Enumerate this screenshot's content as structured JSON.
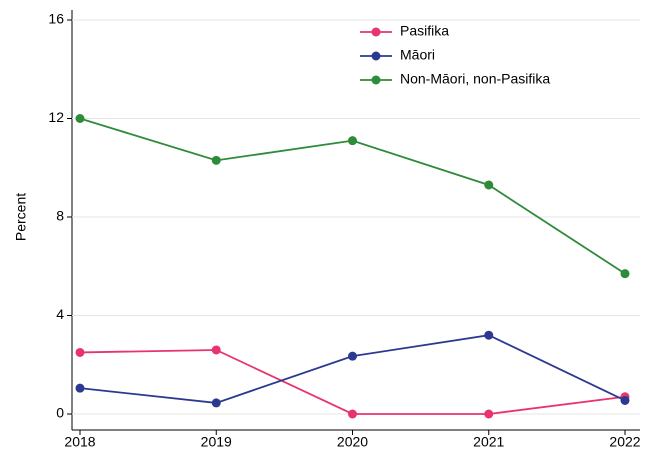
{
  "chart_data": {
    "type": "line",
    "y_label": "Percent",
    "x": [
      2018,
      2019,
      2020,
      2021,
      2022
    ],
    "xlim": [
      2018,
      2022
    ],
    "xticks": [
      2018,
      2019,
      2020,
      2021,
      2022
    ],
    "ylim": [
      0,
      16
    ],
    "yticks": [
      0,
      4,
      8,
      12,
      16
    ],
    "grid": true,
    "legend": "top-right",
    "series": [
      {
        "name": "Pasifika",
        "color": "#e8336f",
        "values": [
          2.5,
          2.6,
          0,
          0,
          0.7
        ]
      },
      {
        "name": "Māori",
        "color": "#2b3990",
        "values": [
          1.05,
          0.45,
          2.35,
          3.2,
          0.55
        ]
      },
      {
        "name": "Non-Māori, non-Pasifika",
        "color": "#2e8b3a",
        "values": [
          12.0,
          10.3,
          11.1,
          9.3,
          5.7
        ]
      }
    ]
  }
}
